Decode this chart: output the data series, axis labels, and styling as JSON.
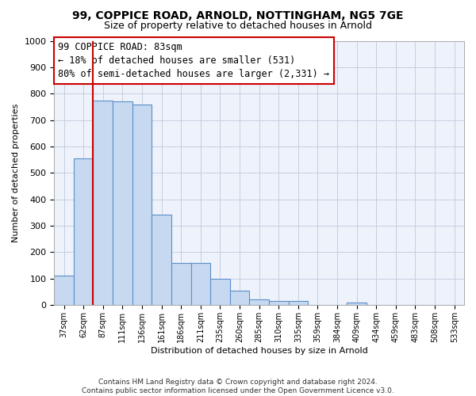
{
  "title": "99, COPPICE ROAD, ARNOLD, NOTTINGHAM, NG5 7GE",
  "subtitle": "Size of property relative to detached houses in Arnold",
  "xlabel": "Distribution of detached houses by size in Arnold",
  "ylabel": "Number of detached properties",
  "footer_line1": "Contains HM Land Registry data © Crown copyright and database right 2024.",
  "footer_line2": "Contains public sector information licensed under the Open Government Licence v3.0.",
  "bins": [
    "37sqm",
    "62sqm",
    "87sqm",
    "111sqm",
    "136sqm",
    "161sqm",
    "186sqm",
    "211sqm",
    "235sqm",
    "260sqm",
    "285sqm",
    "310sqm",
    "335sqm",
    "359sqm",
    "384sqm",
    "409sqm",
    "434sqm",
    "459sqm",
    "483sqm",
    "508sqm",
    "533sqm"
  ],
  "bar_heights": [
    112,
    555,
    775,
    770,
    760,
    343,
    160,
    160,
    98,
    55,
    20,
    15,
    15,
    0,
    0,
    10,
    0,
    0,
    0,
    0,
    0
  ],
  "ylim": [
    0,
    1000
  ],
  "red_line_x": 1.5,
  "annotation_text": "99 COPPICE ROAD: 83sqm\n← 18% of detached houses are smaller (531)\n80% of semi-detached houses are larger (2,331) →",
  "bar_color": "#c6d9f0",
  "bar_edge_color": "#5b8fc9",
  "red_line_color": "#cc0000",
  "annotation_box_edge_color": "#cc0000",
  "bg_color": "#eef2fb",
  "grid_color": "#c5cee0",
  "title_fontsize": 10,
  "subtitle_fontsize": 9,
  "ylabel_fontsize": 8,
  "xlabel_fontsize": 8,
  "tick_fontsize": 7,
  "annotation_fontsize": 8.5,
  "footer_fontsize": 6.5
}
